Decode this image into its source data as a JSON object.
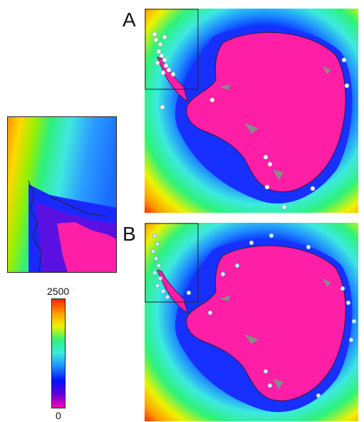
{
  "figure": {
    "panels": [
      {
        "label": "A",
        "id": "a"
      },
      {
        "label": "B",
        "id": "b"
      }
    ],
    "colorbar": {
      "max_label": "2500",
      "min_label": "0",
      "range": [
        0,
        2500
      ],
      "colors": [
        "#ff00b0",
        "#6a00d8",
        "#0010ff",
        "#1f8cff",
        "#3ce9e0",
        "#2ef27a",
        "#eef200",
        "#ff9a00",
        "#ff2000"
      ]
    },
    "land_color": "#ff1ea6",
    "ice_feature_color": "#8a8a8a",
    "marker_colors": {
      "A": "#ffffff",
      "B": "#cdeefe"
    }
  }
}
